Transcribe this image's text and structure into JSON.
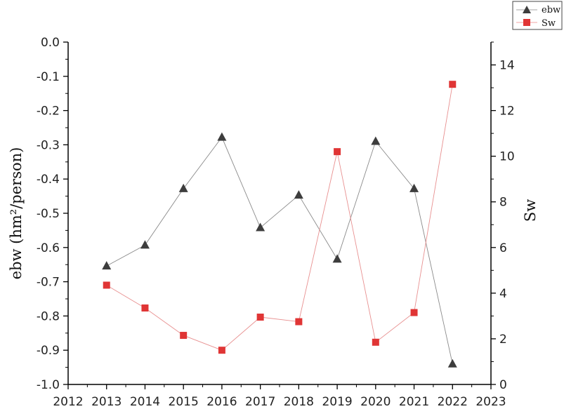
{
  "chart_data": {
    "type": "line",
    "x": [
      2013,
      2014,
      2015,
      2016,
      2017,
      2018,
      2019,
      2020,
      2021,
      2022
    ],
    "xlim": [
      2012,
      2023
    ],
    "xticks": [
      "2012",
      "2013",
      "2014",
      "2015",
      "2016",
      "2017",
      "2018",
      "2019",
      "2020",
      "2021",
      "2022",
      "2023"
    ],
    "ylabel": "ebw (hm²/person)",
    "ylim": [
      -1.0,
      0.0
    ],
    "yticks": [
      "0.0",
      "-0.1",
      "-0.2",
      "-0.3",
      "-0.4",
      "-0.5",
      "-0.6",
      "-0.7",
      "-0.8",
      "-0.9",
      "-1.0"
    ],
    "y2label": "Sw",
    "y2lim": [
      0,
      15
    ],
    "y2ticks": [
      "0",
      "2",
      "4",
      "6",
      "8",
      "10",
      "12",
      "14"
    ],
    "series": [
      {
        "name": "ebw",
        "axis": "left",
        "marker": "triangle",
        "color": "#3d3d3d",
        "values": [
          -0.654,
          -0.593,
          -0.428,
          -0.278,
          -0.542,
          -0.447,
          -0.634,
          -0.29,
          -0.428,
          -0.94
        ]
      },
      {
        "name": "Sw",
        "axis": "right",
        "marker": "square",
        "color": "#e03535",
        "values": [
          4.35,
          3.35,
          2.15,
          1.5,
          2.95,
          2.75,
          10.2,
          1.85,
          3.15,
          13.15
        ]
      }
    ],
    "legend": {
      "position": "top-right",
      "items": [
        "ebw",
        "Sw"
      ]
    }
  }
}
